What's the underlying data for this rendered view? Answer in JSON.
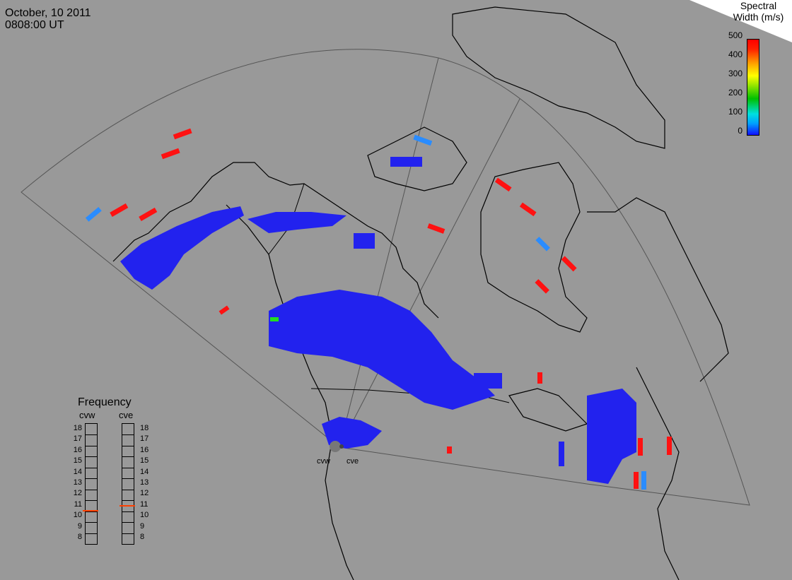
{
  "header": {
    "date": "October, 10 2011",
    "time": "0808:00 UT"
  },
  "legend": {
    "title_line1": "Spectral",
    "title_line2": "Width (m/s)",
    "ticks": [
      "500",
      "400",
      "300",
      "200",
      "100",
      "0"
    ],
    "colors": [
      "#0000ff",
      "#00aaff",
      "#00cc00",
      "#ffff00",
      "#ff8800",
      "#ff0000"
    ]
  },
  "frequency": {
    "title": "Frequency",
    "radars": [
      "cvw",
      "cve"
    ],
    "scale": [
      "18",
      "17",
      "16",
      "15",
      "14",
      "13",
      "12",
      "11",
      "10",
      "9",
      "8"
    ],
    "cvw_mhz": 10.5,
    "cve_mhz": 10.9
  },
  "sites": {
    "west": "cvw",
    "east": "cve"
  },
  "colors": {
    "background": "#999999",
    "low_width": "#2020f0",
    "high_width": "#ff1010",
    "mid_width": "#2a8cff"
  }
}
